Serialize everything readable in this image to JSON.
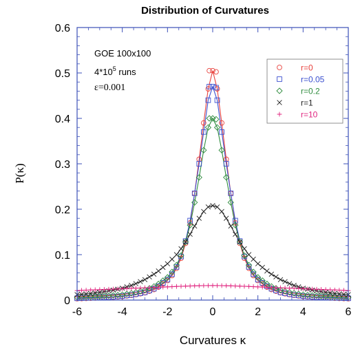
{
  "chart_data": {
    "type": "scatter",
    "title": "Distribution of Curvatures",
    "xlabel": "Curvatures κ",
    "ylabel": "P(κ)",
    "xlim": [
      -6,
      6
    ],
    "ylim": [
      0,
      0.6
    ],
    "xticks": [
      -6,
      -4,
      -2,
      0,
      2,
      4,
      6
    ],
    "yticks": [
      0,
      0.1,
      0.2,
      0.3,
      0.4,
      0.5,
      0.6
    ],
    "xtick_labels": [
      "-6",
      "-4",
      "-2",
      "0",
      "2",
      "4",
      "6"
    ],
    "ytick_labels": [
      "0",
      "0.1",
      "0.2",
      "0.3",
      "0.4",
      "0.5",
      "0.6"
    ],
    "annotations": {
      "line1": "GOE 100x100",
      "runs_prefix": "4*10",
      "runs_exp": "5",
      "runs_suffix": " runs",
      "epsilon": "ε=0.001"
    },
    "legend_position": "top-right",
    "marker_step": 0.2,
    "series": [
      {
        "name": "r=0",
        "color": "#e8413c",
        "marker": "circle",
        "peak": 0.505,
        "x": [
          -6,
          -5.5,
          -5,
          -4.5,
          -4,
          -3.5,
          -3,
          -2.5,
          -2,
          -1.8,
          -1.6,
          -1.4,
          -1.2,
          -1,
          -0.8,
          -0.6,
          -0.4,
          -0.2,
          0,
          0.2,
          0.4,
          0.6,
          0.8,
          1,
          1.2,
          1.4,
          1.6,
          1.8,
          2,
          2.5,
          3,
          3.5,
          4,
          4.5,
          5,
          5.5,
          6
        ],
        "y": [
          0.003,
          0.004,
          0.005,
          0.006,
          0.008,
          0.011,
          0.016,
          0.025,
          0.043,
          0.054,
          0.07,
          0.092,
          0.125,
          0.17,
          0.235,
          0.31,
          0.39,
          0.465,
          0.505,
          0.465,
          0.39,
          0.31,
          0.235,
          0.17,
          0.125,
          0.092,
          0.07,
          0.054,
          0.043,
          0.025,
          0.016,
          0.011,
          0.008,
          0.006,
          0.005,
          0.004,
          0.003
        ]
      },
      {
        "name": "r=0.05",
        "color": "#3a4fcf",
        "marker": "square",
        "peak": 0.47,
        "x": [
          -6,
          -5.5,
          -5,
          -4.5,
          -4,
          -3.5,
          -3,
          -2.5,
          -2,
          -1.8,
          -1.6,
          -1.4,
          -1.2,
          -1,
          -0.8,
          -0.6,
          -0.4,
          -0.2,
          0,
          0.2,
          0.4,
          0.6,
          0.8,
          1,
          1.2,
          1.4,
          1.6,
          1.8,
          2,
          2.5,
          3,
          3.5,
          4,
          4.5,
          5,
          5.5,
          6
        ],
        "y": [
          0.004,
          0.005,
          0.006,
          0.007,
          0.009,
          0.012,
          0.017,
          0.027,
          0.045,
          0.057,
          0.073,
          0.096,
          0.13,
          0.175,
          0.235,
          0.3,
          0.37,
          0.44,
          0.47,
          0.44,
          0.37,
          0.3,
          0.235,
          0.175,
          0.13,
          0.096,
          0.073,
          0.057,
          0.045,
          0.027,
          0.017,
          0.012,
          0.009,
          0.007,
          0.006,
          0.005,
          0.004
        ]
      },
      {
        "name": "r=0.2",
        "color": "#2e8b3d",
        "marker": "diamond",
        "peak": 0.4,
        "x": [
          -6,
          -5.5,
          -5,
          -4.5,
          -4,
          -3.5,
          -3,
          -2.5,
          -2,
          -1.8,
          -1.6,
          -1.4,
          -1.2,
          -1,
          -0.8,
          -0.6,
          -0.4,
          -0.2,
          0,
          0.2,
          0.4,
          0.6,
          0.8,
          1,
          1.2,
          1.4,
          1.6,
          1.8,
          2,
          2.5,
          3,
          3.5,
          4,
          4.5,
          5,
          5.5,
          6
        ],
        "y": [
          0.006,
          0.007,
          0.008,
          0.01,
          0.012,
          0.016,
          0.022,
          0.032,
          0.05,
          0.062,
          0.077,
          0.098,
          0.128,
          0.165,
          0.215,
          0.27,
          0.33,
          0.38,
          0.4,
          0.38,
          0.33,
          0.27,
          0.215,
          0.165,
          0.128,
          0.098,
          0.077,
          0.062,
          0.05,
          0.032,
          0.022,
          0.016,
          0.012,
          0.01,
          0.008,
          0.007,
          0.006
        ]
      },
      {
        "name": "r=1",
        "color": "#222222",
        "marker": "cross",
        "peak": 0.208,
        "x": [
          -6,
          -5.5,
          -5,
          -4.5,
          -4,
          -3.5,
          -3,
          -2.5,
          -2,
          -1.8,
          -1.6,
          -1.4,
          -1.2,
          -1,
          -0.8,
          -0.6,
          -0.4,
          -0.2,
          0,
          0.2,
          0.4,
          0.6,
          0.8,
          1,
          1.2,
          1.4,
          1.6,
          1.8,
          2,
          2.5,
          3,
          3.5,
          4,
          4.5,
          5,
          5.5,
          6
        ],
        "y": [
          0.012,
          0.014,
          0.017,
          0.021,
          0.026,
          0.034,
          0.045,
          0.06,
          0.08,
          0.09,
          0.1,
          0.113,
          0.128,
          0.145,
          0.163,
          0.18,
          0.195,
          0.205,
          0.208,
          0.205,
          0.195,
          0.18,
          0.163,
          0.145,
          0.128,
          0.113,
          0.1,
          0.09,
          0.08,
          0.06,
          0.045,
          0.034,
          0.026,
          0.021,
          0.017,
          0.014,
          0.012
        ]
      },
      {
        "name": "r=10",
        "color": "#e0247f",
        "marker": "plus",
        "peak": 0.032,
        "x": [
          -6,
          -5.5,
          -5,
          -4.5,
          -4,
          -3.5,
          -3,
          -2.5,
          -2,
          -1.8,
          -1.6,
          -1.4,
          -1.2,
          -1,
          -0.8,
          -0.6,
          -0.4,
          -0.2,
          0,
          0.2,
          0.4,
          0.6,
          0.8,
          1,
          1.2,
          1.4,
          1.6,
          1.8,
          2,
          2.5,
          3,
          3.5,
          4,
          4.5,
          5,
          5.5,
          6
        ],
        "y": [
          0.021,
          0.022,
          0.023,
          0.024,
          0.025,
          0.026,
          0.027,
          0.028,
          0.029,
          0.0295,
          0.03,
          0.0303,
          0.0307,
          0.031,
          0.0313,
          0.0316,
          0.0318,
          0.0319,
          0.032,
          0.0319,
          0.0318,
          0.0316,
          0.0313,
          0.031,
          0.0307,
          0.0303,
          0.03,
          0.0295,
          0.029,
          0.028,
          0.027,
          0.026,
          0.025,
          0.024,
          0.023,
          0.022,
          0.021
        ]
      }
    ]
  }
}
